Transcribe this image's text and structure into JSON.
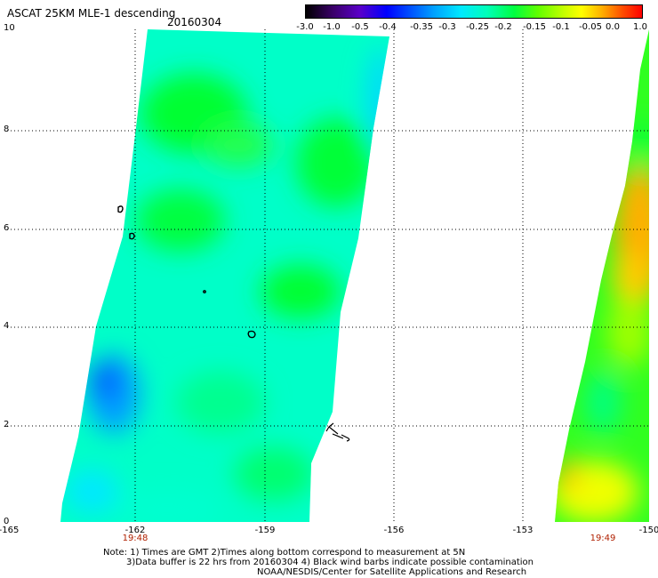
{
  "title": "ASCAT 25KM MLE-1 descending",
  "date": "20160304",
  "colorbar": {
    "labels": [
      "-3.0",
      "-1.0",
      "-0.5",
      "-0.4",
      "-0.35",
      "-0.3",
      "-0.25",
      "-0.2",
      "-0.15",
      "-0.1",
      "-0.05",
      "0.0",
      "1.0"
    ]
  },
  "axes": {
    "y_ticks": [
      "10",
      "8",
      "6",
      "4",
      "2",
      "0"
    ],
    "x_ticks": [
      "-165",
      "-162",
      "-159",
      "-156",
      "-153",
      "-150"
    ]
  },
  "pass_times": [
    "19:48",
    "19:49"
  ],
  "notes": {
    "line1": "Note: 1) Times are GMT 2)Times along bottom correspond to measurement at 5N",
    "line2": "3)Data buffer is 22 hrs from 20160304 4) Black wind barbs indicate possible contamination",
    "line3": "NOAA/NESDIS/Center for Satellite Applications and Research"
  },
  "colors": {
    "swath_low": "#00b4ff",
    "swath_mid": "#00ffcc",
    "swath_high": "#00ff30",
    "swath_warm": "#ffd000",
    "gridline": "#000000"
  }
}
